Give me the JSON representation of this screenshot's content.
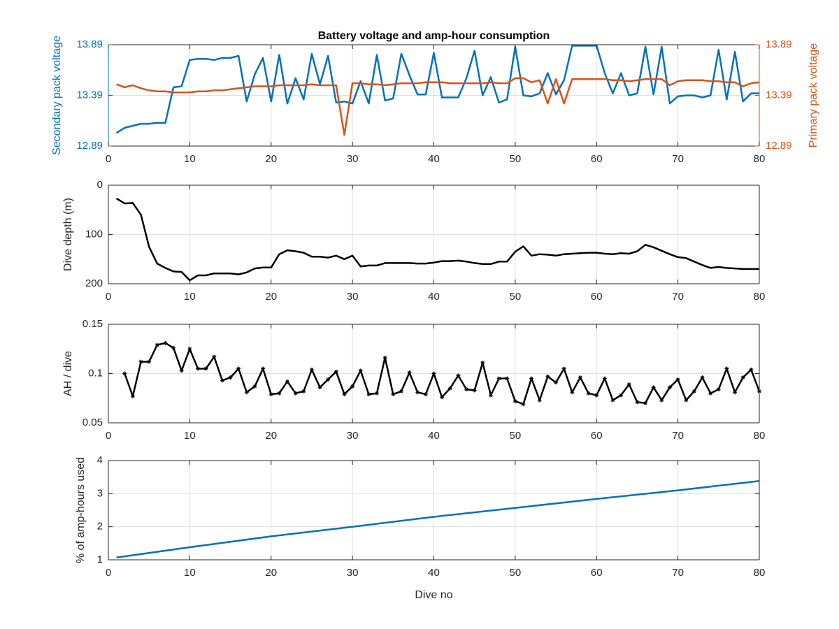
{
  "chart_data": [
    {
      "type": "line",
      "title": "Battery voltage and amp-hour consumption",
      "xlabel": "",
      "ylabel": "Secondary pack voltage",
      "ylabel_right": "Primary pack voltage",
      "xlim": [
        0,
        80
      ],
      "ylim": [
        12.89,
        13.89
      ],
      "ylim_right": [
        12.89,
        13.89
      ],
      "xticks": [
        0,
        10,
        20,
        30,
        40,
        50,
        60,
        70,
        80
      ],
      "yticks": [
        12.89,
        13.39,
        13.89
      ],
      "yticks_right": [
        12.89,
        13.39,
        13.89
      ],
      "grid": true,
      "x": [
        1,
        2,
        3,
        4,
        5,
        6,
        7,
        8,
        9,
        10,
        11,
        12,
        13,
        14,
        15,
        16,
        17,
        18,
        19,
        20,
        21,
        22,
        23,
        24,
        25,
        26,
        27,
        28,
        29,
        30,
        31,
        32,
        33,
        34,
        35,
        36,
        37,
        38,
        39,
        40,
        41,
        42,
        43,
        44,
        45,
        46,
        47,
        48,
        49,
        50,
        51,
        52,
        53,
        54,
        55,
        56,
        57,
        58,
        59,
        60,
        61,
        62,
        63,
        64,
        65,
        66,
        67,
        68,
        69,
        70,
        71,
        72,
        73,
        74,
        75,
        76,
        77,
        78,
        79,
        80
      ],
      "series": [
        {
          "name": "Secondary pack voltage",
          "axis": "left",
          "color": "#0072BD",
          "values": [
            13.02,
            13.07,
            13.09,
            13.11,
            13.11,
            13.12,
            13.12,
            13.47,
            13.48,
            13.74,
            13.75,
            13.75,
            13.74,
            13.76,
            13.76,
            13.78,
            13.33,
            13.6,
            13.76,
            13.33,
            13.79,
            13.31,
            13.56,
            13.35,
            13.8,
            13.5,
            13.78,
            13.32,
            13.33,
            13.31,
            13.53,
            13.31,
            13.79,
            13.34,
            13.36,
            13.8,
            13.59,
            13.4,
            13.4,
            13.81,
            13.37,
            13.37,
            13.37,
            13.56,
            13.83,
            13.39,
            13.57,
            13.32,
            13.35,
            13.87,
            13.39,
            13.38,
            13.41,
            13.61,
            13.4,
            13.54,
            13.88,
            13.88,
            13.88,
            13.88,
            13.61,
            13.41,
            13.61,
            13.39,
            13.41,
            13.87,
            13.4,
            13.87,
            13.31,
            13.38,
            13.39,
            13.39,
            13.37,
            13.39,
            13.84,
            13.35,
            13.82,
            13.33,
            13.41,
            13.41
          ]
        },
        {
          "name": "Primary pack voltage",
          "axis": "right",
          "color": "#D95319",
          "values": [
            13.5,
            13.47,
            13.49,
            13.46,
            13.44,
            13.43,
            13.43,
            13.42,
            13.42,
            13.42,
            13.43,
            13.43,
            13.44,
            13.44,
            13.45,
            13.46,
            13.47,
            13.48,
            13.48,
            13.48,
            13.49,
            13.49,
            13.49,
            13.49,
            13.5,
            13.49,
            13.49,
            13.49,
            13.0,
            13.51,
            13.51,
            13.5,
            13.5,
            13.49,
            13.5,
            13.51,
            13.51,
            13.51,
            13.52,
            13.52,
            13.52,
            13.51,
            13.51,
            13.51,
            13.51,
            13.51,
            13.52,
            13.51,
            13.51,
            13.56,
            13.56,
            13.52,
            13.54,
            13.31,
            13.55,
            13.31,
            13.55,
            13.55,
            13.55,
            13.55,
            13.55,
            13.54,
            13.54,
            13.53,
            13.54,
            13.55,
            13.55,
            13.55,
            13.49,
            13.53,
            13.54,
            13.54,
            13.54,
            13.53,
            13.53,
            13.52,
            13.52,
            13.48,
            13.51,
            13.52
          ]
        }
      ]
    },
    {
      "type": "line",
      "xlabel": "",
      "ylabel": "Dive depth (m)",
      "xlim": [
        0,
        80
      ],
      "ylim": [
        0,
        200
      ],
      "y_reversed": true,
      "xticks": [
        0,
        10,
        20,
        30,
        40,
        50,
        60,
        70,
        80
      ],
      "yticks": [
        0,
        100,
        200
      ],
      "grid": true,
      "x": [
        1,
        2,
        3,
        4,
        5,
        6,
        7,
        8,
        9,
        10,
        11,
        12,
        13,
        14,
        15,
        16,
        17,
        18,
        19,
        20,
        21,
        22,
        23,
        24,
        25,
        26,
        27,
        28,
        29,
        30,
        31,
        32,
        33,
        34,
        35,
        36,
        37,
        38,
        39,
        40,
        41,
        42,
        43,
        44,
        45,
        46,
        47,
        48,
        49,
        50,
        51,
        52,
        53,
        54,
        55,
        56,
        57,
        58,
        59,
        60,
        61,
        62,
        63,
        64,
        65,
        66,
        67,
        68,
        69,
        70,
        71,
        72,
        73,
        74,
        75,
        76,
        77,
        78,
        79,
        80
      ],
      "series": [
        {
          "color": "#000000",
          "values": [
            27,
            37,
            36,
            60,
            125,
            159,
            168,
            175,
            176,
            193,
            183,
            183,
            179,
            179,
            179,
            181,
            177,
            169,
            167,
            167,
            140,
            132,
            134,
            137,
            145,
            145,
            147,
            143,
            150,
            143,
            165,
            163,
            163,
            158,
            158,
            158,
            158,
            159,
            159,
            157,
            154,
            154,
            153,
            155,
            158,
            160,
            160,
            155,
            155,
            135,
            124,
            143,
            140,
            141,
            143,
            140,
            139,
            138,
            137,
            137,
            139,
            140,
            138,
            139,
            134,
            121,
            126,
            133,
            140,
            146,
            148,
            155,
            162,
            168,
            166,
            168,
            169,
            170,
            170,
            170
          ]
        }
      ]
    },
    {
      "type": "line",
      "xlabel": "",
      "ylabel": "AH / dive",
      "xlim": [
        0,
        80
      ],
      "ylim": [
        0.05,
        0.15
      ],
      "xticks": [
        0,
        10,
        20,
        30,
        40,
        50,
        60,
        70,
        80
      ],
      "yticks": [
        0.05,
        0.1,
        0.15
      ],
      "grid": true,
      "marker": "*",
      "x": [
        2,
        3,
        4,
        5,
        6,
        7,
        8,
        9,
        10,
        11,
        12,
        13,
        14,
        15,
        16,
        17,
        18,
        19,
        20,
        21,
        22,
        23,
        24,
        25,
        26,
        27,
        28,
        29,
        30,
        31,
        32,
        33,
        34,
        35,
        36,
        37,
        38,
        39,
        40,
        41,
        42,
        43,
        44,
        45,
        46,
        47,
        48,
        49,
        50,
        51,
        52,
        53,
        54,
        55,
        56,
        57,
        58,
        59,
        60,
        61,
        62,
        63,
        64,
        65,
        66,
        67,
        68,
        69,
        70,
        71,
        72,
        73,
        74,
        75,
        76,
        77,
        78,
        79,
        80
      ],
      "series": [
        {
          "color": "#000000",
          "values": [
            0.1,
            0.077,
            0.112,
            0.112,
            0.129,
            0.131,
            0.126,
            0.103,
            0.125,
            0.105,
            0.105,
            0.117,
            0.093,
            0.096,
            0.105,
            0.081,
            0.087,
            0.105,
            0.079,
            0.08,
            0.092,
            0.08,
            0.082,
            0.104,
            0.086,
            0.094,
            0.102,
            0.079,
            0.087,
            0.103,
            0.079,
            0.08,
            0.116,
            0.079,
            0.082,
            0.101,
            0.081,
            0.079,
            0.1,
            0.076,
            0.085,
            0.098,
            0.084,
            0.083,
            0.111,
            0.078,
            0.095,
            0.095,
            0.072,
            0.069,
            0.095,
            0.073,
            0.097,
            0.091,
            0.105,
            0.081,
            0.096,
            0.08,
            0.078,
            0.095,
            0.073,
            0.078,
            0.089,
            0.071,
            0.07,
            0.086,
            0.073,
            0.086,
            0.094,
            0.073,
            0.082,
            0.096,
            0.08,
            0.084,
            0.105,
            0.081,
            0.096,
            0.104,
            0.082
          ]
        }
      ]
    },
    {
      "type": "line",
      "xlabel": "Dive no",
      "ylabel": "% of amp-hours used",
      "xlim": [
        0,
        80
      ],
      "ylim": [
        1,
        4
      ],
      "xticks": [
        0,
        10,
        20,
        30,
        40,
        50,
        60,
        70,
        80
      ],
      "yticks": [
        1,
        2,
        3,
        4
      ],
      "grid": true,
      "x": [
        1,
        10,
        20,
        30,
        40,
        50,
        60,
        70,
        80
      ],
      "series": [
        {
          "color": "#0072BD",
          "values": [
            1.07,
            1.38,
            1.71,
            2.0,
            2.3,
            2.57,
            2.84,
            3.1,
            3.38
          ]
        }
      ]
    }
  ]
}
